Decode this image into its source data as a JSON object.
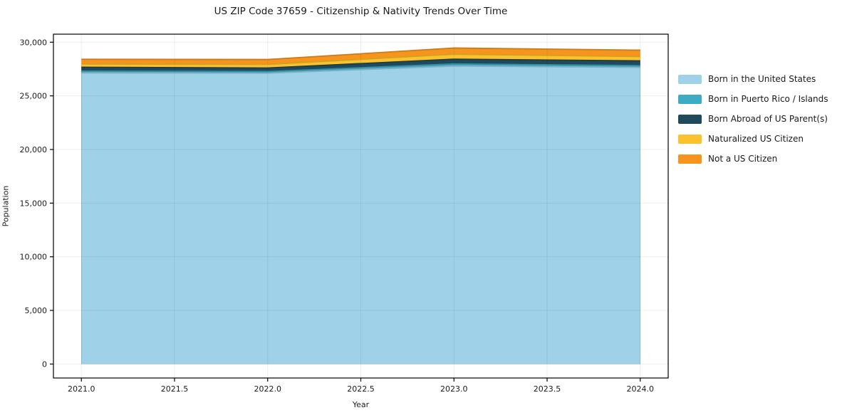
{
  "figure": {
    "background": "#ffffff",
    "text_color": "#1a1a1a"
  },
  "chart_data": {
    "type": "area",
    "stacked": true,
    "title": "US ZIP Code 37659 - Citizenship & Nativity Trends Over Time",
    "xlabel": "Year",
    "ylabel": "Population",
    "x": [
      2021,
      2022,
      2023,
      2024
    ],
    "series": [
      {
        "name": "Born in the United States",
        "color": "#9FD2E9",
        "values": [
          27140,
          27110,
          27780,
          27650
        ]
      },
      {
        "name": "Born in Puerto Rico / Islands",
        "color": "#3DABC4",
        "values": [
          170,
          160,
          200,
          170
        ]
      },
      {
        "name": "Born Abroad of US Parent(s)",
        "color": "#20495C",
        "values": [
          360,
          330,
          440,
          440
        ]
      },
      {
        "name": "Naturalized US Citizen",
        "color": "#FCC22D",
        "values": [
          300,
          330,
          460,
          400
        ]
      },
      {
        "name": "Not a US Citizen",
        "color": "#F6941E",
        "values": [
          440,
          460,
          580,
          600
        ]
      }
    ],
    "stack_totals": [
      28410,
      28390,
      29460,
      29260
    ],
    "xticks": {
      "values": [
        2021.0,
        2021.5,
        2022.0,
        2022.5,
        2023.0,
        2023.5,
        2024.0
      ],
      "labels": [
        "2021.0",
        "2021.5",
        "2022.0",
        "2022.5",
        "2023.0",
        "2023.5",
        "2024.0"
      ]
    },
    "yticks": {
      "values": [
        0,
        5000,
        10000,
        15000,
        20000,
        25000,
        30000
      ],
      "labels": [
        "0",
        "5,000",
        "10,000",
        "15,000",
        "20,000",
        "25,000",
        "30,000"
      ]
    },
    "xlim": [
      2020.85,
      2024.15
    ],
    "ylim": [
      -1300,
      30750
    ],
    "grid": true,
    "legend_position": "right of plot, no frame"
  }
}
